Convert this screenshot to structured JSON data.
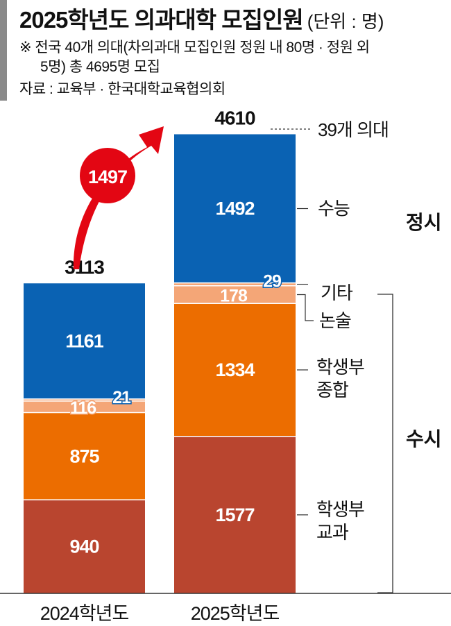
{
  "header": {
    "title": "2025학년도 의과대학 모집인원",
    "unit": "(단위 : 명)",
    "note_line1": "※ 전국 40개 의대(차의과대 모집인원 정원 내 80명 · 정원 외",
    "note_line2": "5명) 총 4695명 모집",
    "source": "자료 : 교육부 · 한국대학교육협의회"
  },
  "colors": {
    "jeongsi_blue": "#0a62b3",
    "gita_light": "#f4a677",
    "nonsul_light": "#f4a677",
    "jonghap_orange": "#ec6d00",
    "gyogwa_brown": "#b9452f",
    "increase_arrow": "#e30613"
  },
  "chart_data": {
    "type": "bar",
    "stacked": true,
    "categories": [
      "2024학년도",
      "2025학년도"
    ],
    "totals": [
      3113,
      4610
    ],
    "total_annotation": "39개 의대",
    "increase": {
      "value": 1497
    },
    "series": [
      {
        "name": "학생부 교과",
        "values": [
          940,
          1577
        ]
      },
      {
        "name": "학생부 종합",
        "values": [
          875,
          1334
        ]
      },
      {
        "name": "논술",
        "values": [
          116,
          178
        ]
      },
      {
        "name": "기타",
        "values": [
          21,
          29
        ]
      },
      {
        "name": "수능",
        "values": [
          1161,
          1492
        ]
      }
    ],
    "groups": [
      {
        "name": "정시"
      },
      {
        "name": "수시"
      }
    ],
    "segment_labels": [
      {
        "kind": "gita",
        "name": "기타"
      },
      {
        "kind": "nonsul",
        "name": "논술"
      },
      {
        "kind": "jonghap",
        "name": "학생부\n종합"
      },
      {
        "kind": "gyogwa",
        "name": "학생부\n교과"
      },
      {
        "kind": "suneung",
        "name": "수능"
      }
    ]
  }
}
